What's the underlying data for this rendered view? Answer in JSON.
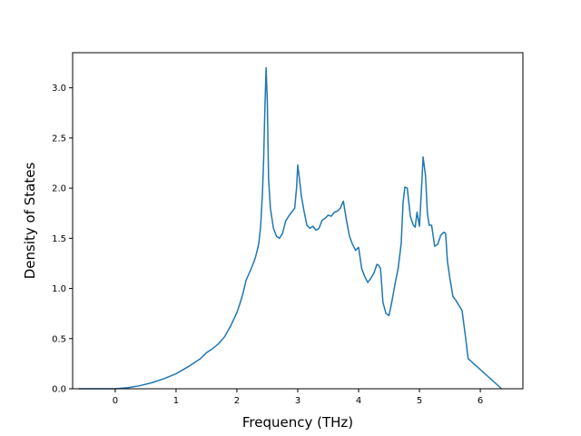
{
  "chart_data": {
    "type": "line",
    "title": "",
    "xlabel": "Frequency (THz)",
    "ylabel": "Density of States",
    "xlim": [
      -0.7,
      6.7
    ],
    "ylim": [
      0.0,
      3.35
    ],
    "xticks": [
      0,
      1,
      2,
      3,
      4,
      5,
      6
    ],
    "yticks": [
      0.0,
      0.5,
      1.0,
      1.5,
      2.0,
      2.5,
      3.0
    ],
    "xtick_labels": [
      "0",
      "1",
      "2",
      "3",
      "4",
      "5",
      "6"
    ],
    "ytick_labels": [
      "0.0",
      "0.5",
      "1.0",
      "1.5",
      "2.0",
      "2.5",
      "3.0"
    ],
    "grid": false,
    "line_color": "#1f77b4",
    "series": [
      {
        "x": [
          -0.6,
          0.0,
          0.2,
          0.4,
          0.6,
          0.8,
          1.0,
          1.2,
          1.4,
          1.5,
          1.6,
          1.7,
          1.8,
          1.9,
          2.0,
          2.05,
          2.1,
          2.15,
          2.2,
          2.25,
          2.3,
          2.33,
          2.36,
          2.39,
          2.42,
          2.44,
          2.46,
          2.48,
          2.5,
          2.52,
          2.55,
          2.6,
          2.65,
          2.7,
          2.75,
          2.8,
          2.85,
          2.9,
          2.95,
          2.98,
          3.0,
          3.03,
          3.06,
          3.1,
          3.15,
          3.2,
          3.25,
          3.3,
          3.35,
          3.4,
          3.45,
          3.5,
          3.55,
          3.6,
          3.65,
          3.7,
          3.72,
          3.75,
          3.8,
          3.85,
          3.9,
          3.95,
          4.0,
          4.05,
          4.1,
          4.15,
          4.2,
          4.25,
          4.3,
          4.33,
          4.36,
          4.4,
          4.45,
          4.5,
          4.55,
          4.6,
          4.65,
          4.7,
          4.73,
          4.76,
          4.8,
          4.85,
          4.9,
          4.93,
          4.96,
          5.0,
          5.03,
          5.06,
          5.1,
          5.13,
          5.16,
          5.2,
          5.25,
          5.3,
          5.35,
          5.4,
          5.43,
          5.46,
          5.5,
          5.55,
          5.6,
          5.65,
          5.7,
          5.75,
          5.8,
          6.35
        ],
        "y": [
          0.0,
          0.0,
          0.01,
          0.03,
          0.06,
          0.1,
          0.15,
          0.22,
          0.3,
          0.36,
          0.4,
          0.45,
          0.52,
          0.63,
          0.76,
          0.85,
          0.95,
          1.08,
          1.15,
          1.22,
          1.3,
          1.37,
          1.45,
          1.62,
          1.95,
          2.3,
          2.8,
          3.2,
          2.85,
          2.1,
          1.8,
          1.6,
          1.52,
          1.5,
          1.55,
          1.67,
          1.72,
          1.76,
          1.8,
          2.0,
          2.23,
          2.08,
          1.92,
          1.78,
          1.63,
          1.6,
          1.62,
          1.58,
          1.6,
          1.68,
          1.7,
          1.73,
          1.72,
          1.76,
          1.77,
          1.8,
          1.83,
          1.87,
          1.68,
          1.52,
          1.44,
          1.38,
          1.41,
          1.2,
          1.12,
          1.06,
          1.1,
          1.15,
          1.24,
          1.23,
          1.2,
          0.86,
          0.75,
          0.73,
          0.88,
          1.05,
          1.2,
          1.45,
          1.85,
          2.01,
          2.0,
          1.72,
          1.63,
          1.61,
          1.76,
          1.62,
          1.95,
          2.31,
          2.12,
          1.75,
          1.63,
          1.63,
          1.42,
          1.44,
          1.53,
          1.56,
          1.55,
          1.27,
          1.1,
          0.92,
          0.88,
          0.83,
          0.78,
          0.55,
          0.3,
          0.0
        ]
      }
    ]
  }
}
